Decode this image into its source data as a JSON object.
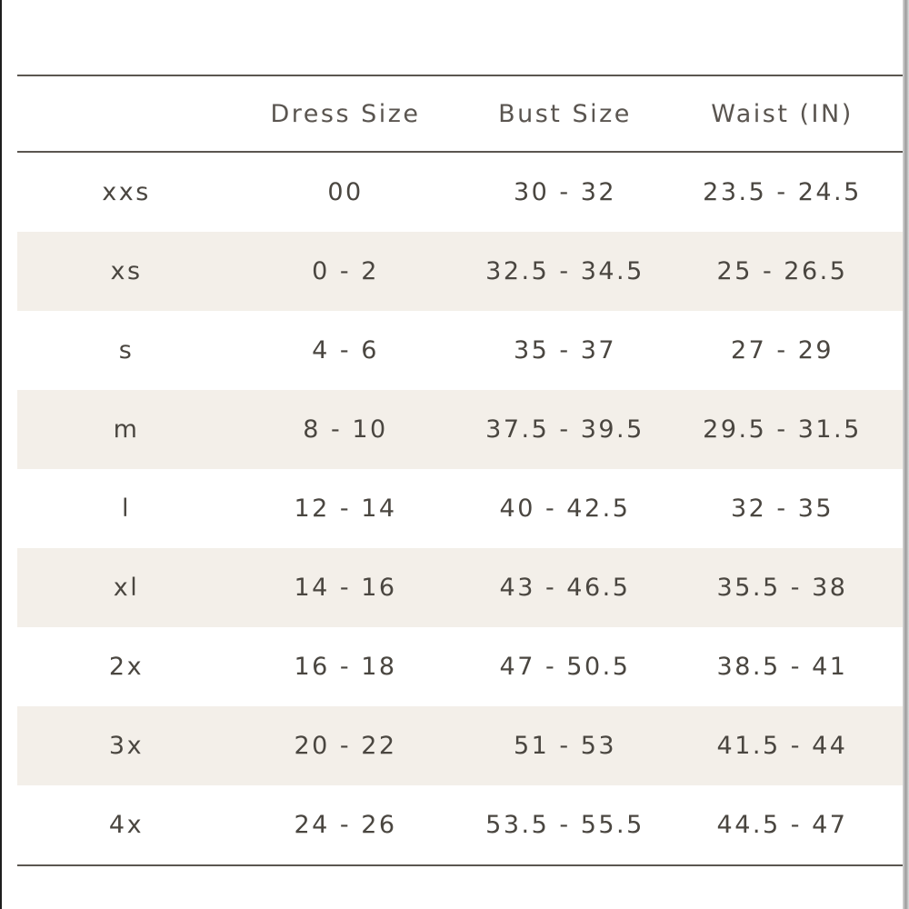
{
  "table": {
    "headers": [
      "",
      "Dress Size",
      "Bust Size",
      "Waist (IN)"
    ],
    "rows": [
      [
        "xxs",
        "00",
        "30 - 32",
        "23.5 - 24.5"
      ],
      [
        "xs",
        "0 - 2",
        "32.5 - 34.5",
        "25 - 26.5"
      ],
      [
        "s",
        "4 - 6",
        "35 - 37",
        "27 - 29"
      ],
      [
        "m",
        "8 - 10",
        "37.5 - 39.5",
        "29.5 - 31.5"
      ],
      [
        "l",
        "12 - 14",
        "40 - 42.5",
        "32 - 35"
      ],
      [
        "xl",
        "14 - 16",
        "43 - 46.5",
        "35.5 - 38"
      ],
      [
        "2x",
        "16 - 18",
        "47 - 50.5",
        "38.5 - 41"
      ],
      [
        "3x",
        "20 - 22",
        "51 - 53",
        "41.5 - 44"
      ],
      [
        "4x",
        "24 - 26",
        "53.5 - 55.5",
        "44.5 - 47"
      ]
    ]
  },
  "colors": {
    "text": "#4a4640",
    "rule": "#5b5650",
    "row_shade": "#f3efe9",
    "background": "#ffffff"
  }
}
